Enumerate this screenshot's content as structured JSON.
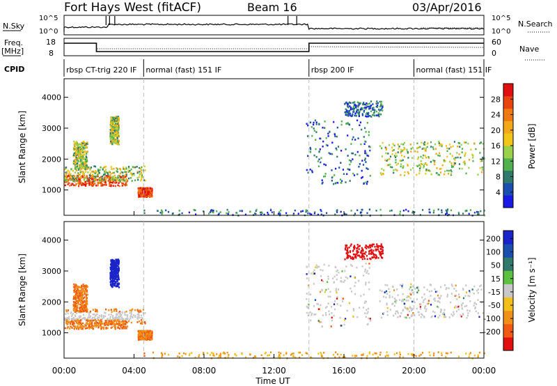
{
  "header": {
    "station": "Fort Hays West (fitACF)",
    "beam": "Beam 16",
    "date": "03/Apr/2016"
  },
  "left_labels": {
    "nsky": "N.Sky",
    "freq": "Freq.",
    "freq_unit": "[MHz]",
    "cpid": "CPID"
  },
  "right_labels": {
    "nsearch": "N.Search",
    "nave": "Nave"
  },
  "noise_panel": {
    "left_ticks": [
      "10^5",
      "10^0"
    ],
    "right_ticks": [
      "10^5",
      "10^0"
    ]
  },
  "freq_panel": {
    "left_ticks": [
      "18",
      "8"
    ],
    "right_ticks": [
      "60",
      "0"
    ]
  },
  "cpid_segments": [
    {
      "label": "rbsp CT-trig 220 IF",
      "start_hour": 0.0
    },
    {
      "label": "normal (fast) 151 IF",
      "start_hour": 4.55
    },
    {
      "label": "rbsp 200 IF",
      "start_hour": 14.0
    },
    {
      "label": "normal (fast) 151 IF",
      "start_hour": 20.0
    }
  ],
  "axes": {
    "ylabel": "Slant Range [km]",
    "xlabel": "Time UT",
    "x_ticks": [
      "00:00",
      "04:00",
      "08:00",
      "12:00",
      "16:00",
      "20:00",
      "00:00"
    ],
    "y_ticks": [
      "1000",
      "2000",
      "3000",
      "4000"
    ]
  },
  "colorbars": {
    "power": {
      "label": "Power [dB]",
      "ticks": [
        "4",
        "8",
        "12",
        "16",
        "20",
        "24",
        "28"
      ],
      "colors": [
        "#1a1ae6",
        "#1a4fb0",
        "#2f7a6b",
        "#52b04f",
        "#9ad14a",
        "#f2c618",
        "#f2a818",
        "#f07a12",
        "#e84410",
        "#e01010"
      ]
    },
    "velocity": {
      "label": "Velocity [m s⁻¹]",
      "ticks": [
        "200",
        "100",
        "50",
        "15",
        "-15",
        "-50",
        "-100",
        "-200"
      ],
      "colors": [
        "#1a24c8",
        "#1a4fb0",
        "#2f7a6b",
        "#5cc040",
        "#c8c8c8",
        "#f2c018",
        "#f09018",
        "#f05a12",
        "#e01010"
      ]
    }
  },
  "chart_data": {
    "type": "heatmap",
    "x_range_hours": [
      0,
      24
    ],
    "y_range_km": [
      180,
      4600
    ],
    "grid": false,
    "power_regions": [
      {
        "t": [
          0.0,
          3.6
        ],
        "r": [
          1150,
          1500
        ],
        "level": "high"
      },
      {
        "t": [
          0.0,
          4.6
        ],
        "r": [
          1300,
          1800
        ],
        "level": "mid"
      },
      {
        "t": [
          0.5,
          1.3
        ],
        "r": [
          1700,
          2600
        ],
        "level": "mid"
      },
      {
        "t": [
          2.6,
          3.1
        ],
        "r": [
          2500,
          3400
        ],
        "level": "mid"
      },
      {
        "t": [
          4.2,
          5.0
        ],
        "r": [
          800,
          1100
        ],
        "level": "high"
      },
      {
        "t": [
          13.8,
          17.5
        ],
        "r": [
          1200,
          3300
        ],
        "level": "low"
      },
      {
        "t": [
          16.0,
          18.2
        ],
        "r": [
          3400,
          3900
        ],
        "level": "low"
      },
      {
        "t": [
          18.0,
          24.0
        ],
        "r": [
          1500,
          2600
        ],
        "level": "mid"
      },
      {
        "t": [
          4.5,
          24.0
        ],
        "r": [
          200,
          400
        ],
        "level": "low"
      }
    ]
  }
}
